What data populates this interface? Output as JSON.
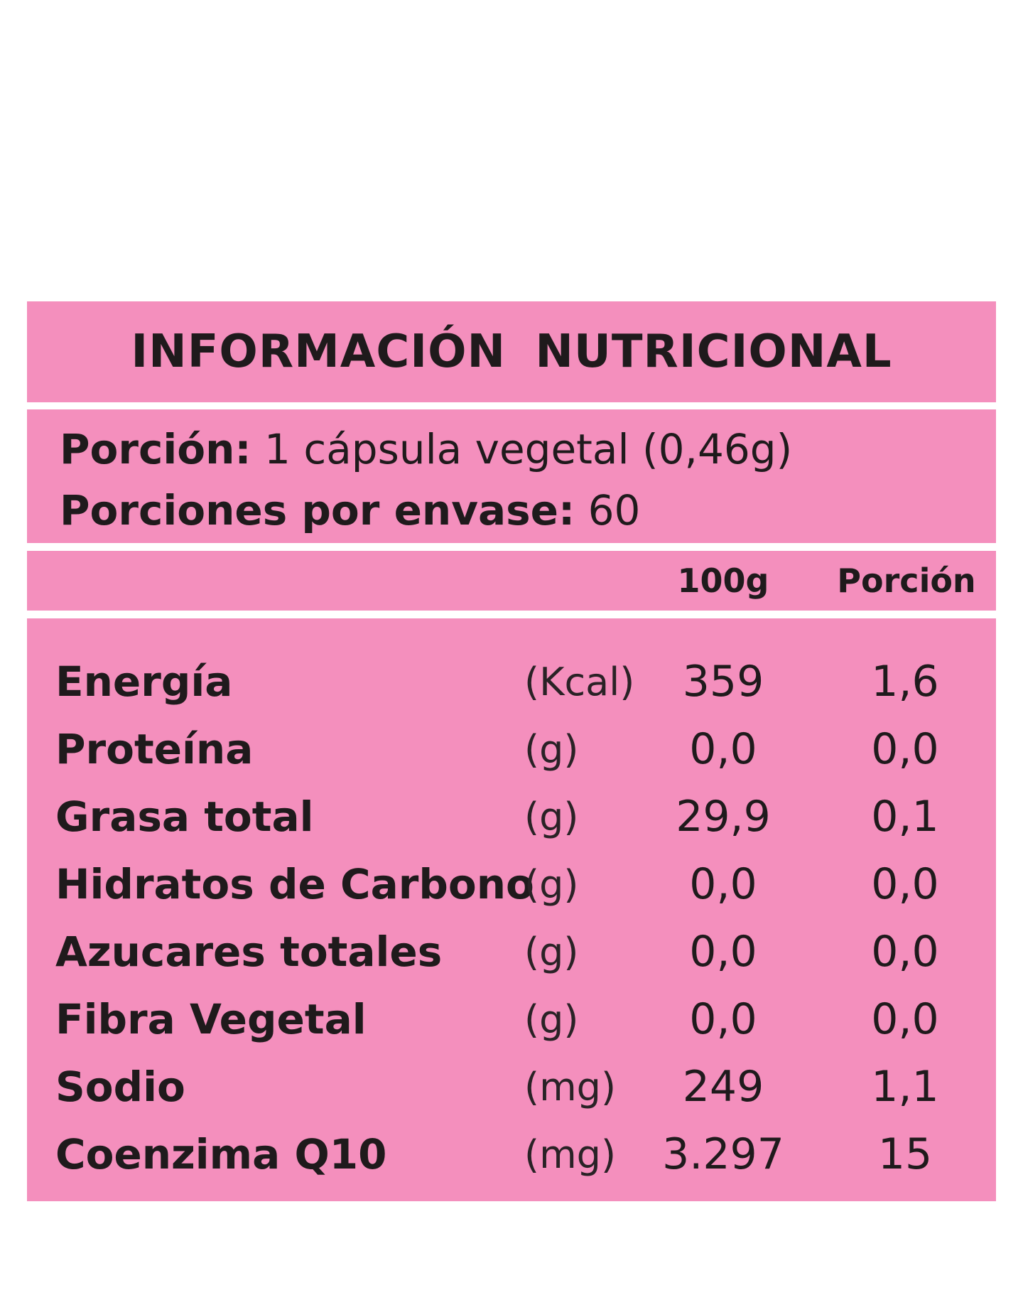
{
  "title": "INFORMACIÓN NUTRICIONAL",
  "serving": {
    "portion_label": "Porción:",
    "portion_value": "1 cápsula vegetal (0,46g)",
    "per_container_label": "Porciones por envase:",
    "per_container_value": "60"
  },
  "columns": {
    "per_100g": "100g",
    "per_portion": "Porción"
  },
  "nutrients": [
    {
      "name": "Energía",
      "unit": "(Kcal)",
      "per_100g": "359",
      "per_portion": "1,6"
    },
    {
      "name": "Proteína",
      "unit": "(g)",
      "per_100g": "0,0",
      "per_portion": "0,0"
    },
    {
      "name": "Grasa total",
      "unit": "(g)",
      "per_100g": "29,9",
      "per_portion": "0,1"
    },
    {
      "name": "Hidratos de Carbono",
      "unit": "(g)",
      "per_100g": "0,0",
      "per_portion": "0,0"
    },
    {
      "name": "Azucares totales",
      "unit": "(g)",
      "per_100g": "0,0",
      "per_portion": "0,0"
    },
    {
      "name": "Fibra Vegetal",
      "unit": "(g)",
      "per_100g": "0,0",
      "per_portion": "0,0"
    },
    {
      "name": "Sodio",
      "unit": "(mg)",
      "per_100g": "249",
      "per_portion": "1,1"
    },
    {
      "name": "Coenzima Q10",
      "unit": "(mg)",
      "per_100g": "3.297",
      "per_portion": "15"
    }
  ],
  "colors": {
    "panel": "#f48fbd",
    "text": "#1f1a1c",
    "background": "#ffffff"
  }
}
